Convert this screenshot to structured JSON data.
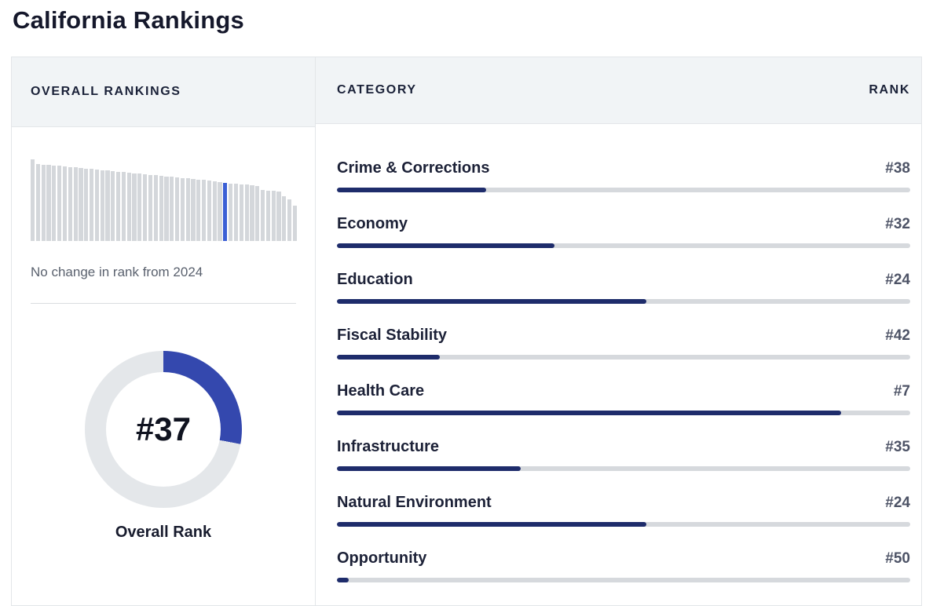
{
  "page": {
    "title": "California Rankings"
  },
  "overall": {
    "header": "OVERALL RANKINGS",
    "trend_caption": "No change in rank from 2024",
    "rank": 37,
    "rank_display": "#37",
    "rank_label": "Overall Rank",
    "total_states": 50,
    "fill_pct": 28
  },
  "categories": {
    "header": "CATEGORY",
    "rank_header": "RANK",
    "rows": [
      {
        "label": "Crime & Corrections",
        "rank": 38,
        "rank_display": "#38",
        "fill_pct": 26
      },
      {
        "label": "Economy",
        "rank": 32,
        "rank_display": "#32",
        "fill_pct": 38
      },
      {
        "label": "Education",
        "rank": 24,
        "rank_display": "#24",
        "fill_pct": 54
      },
      {
        "label": "Fiscal Stability",
        "rank": 42,
        "rank_display": "#42",
        "fill_pct": 18
      },
      {
        "label": "Health Care",
        "rank": 7,
        "rank_display": "#7",
        "fill_pct": 88
      },
      {
        "label": "Infrastructure",
        "rank": 35,
        "rank_display": "#35",
        "fill_pct": 32
      },
      {
        "label": "Natural Environment",
        "rank": 24,
        "rank_display": "#24",
        "fill_pct": 54
      },
      {
        "label": "Opportunity",
        "rank": 50,
        "rank_display": "#50",
        "fill_pct": 2
      }
    ]
  },
  "colors": {
    "accent_blue": "#3b5fd5",
    "donut_fill": "#3448ae",
    "donut_track": "#e4e7ea",
    "navy_bar": "#1e2c6b",
    "bar_track": "#d6d9dd",
    "mini_bar_gray": "#d4d7db",
    "header_bg": "#f1f4f6",
    "border": "#e3e6e9",
    "title_text": "#15182b"
  },
  "chart_data": [
    {
      "type": "bar",
      "title": "Overall rankings distribution — 50 states sorted best to worst, California highlighted",
      "xlabel": "",
      "ylabel": "",
      "values": [
        104,
        98,
        97,
        97,
        96,
        96,
        95,
        94,
        94,
        93,
        92,
        92,
        91,
        90,
        90,
        89,
        88,
        88,
        87,
        86,
        86,
        85,
        84,
        84,
        83,
        82,
        82,
        81,
        80,
        80,
        79,
        78,
        78,
        77,
        76,
        75,
        74,
        73,
        73,
        72,
        72,
        71,
        70,
        65,
        64,
        64,
        63,
        57,
        53,
        45
      ],
      "max_value": 104,
      "highlight_index": 37,
      "grid": false,
      "axes_shown": false
    },
    {
      "type": "pie",
      "title": "Overall Rank",
      "center_label": "#37",
      "slices": [
        {
          "name": "rank-progress",
          "value": 28
        },
        {
          "name": "remainder",
          "value": 72
        }
      ],
      "note": "donut gauge, progress = (51 - rank) / 50"
    },
    {
      "type": "bar",
      "title": "Category ranks",
      "categories": [
        "Crime & Corrections",
        "Economy",
        "Education",
        "Fiscal Stability",
        "Health Care",
        "Infrastructure",
        "Natural Environment",
        "Opportunity"
      ],
      "values": [
        38,
        32,
        24,
        42,
        7,
        35,
        24,
        50
      ],
      "note": "horizontal progress bars, fill fraction = (51 - rank) / 50, out of 50 states"
    }
  ]
}
